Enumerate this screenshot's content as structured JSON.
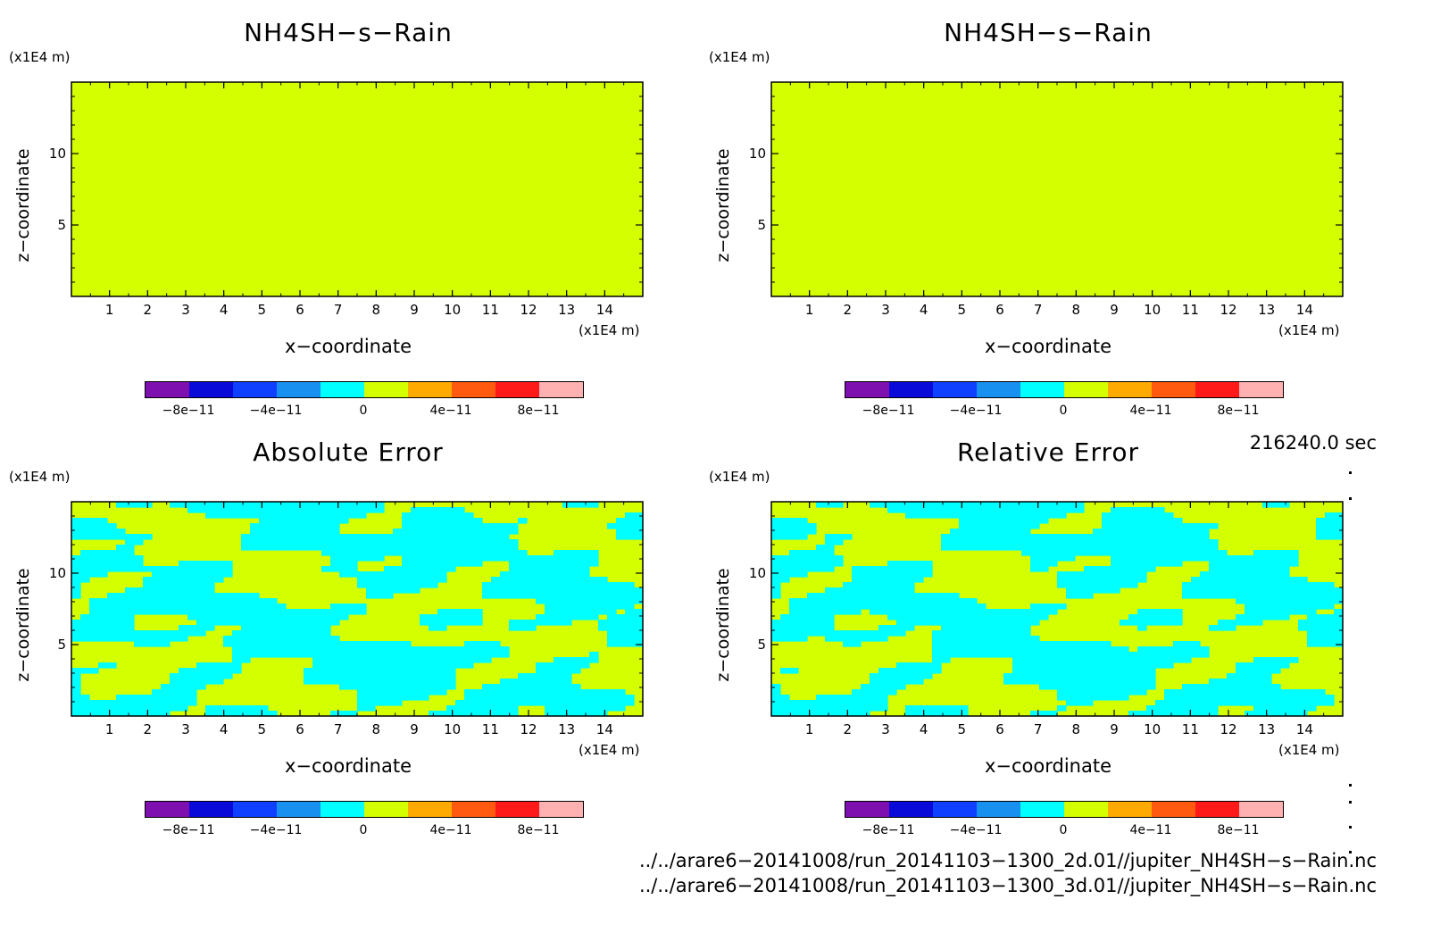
{
  "panels": [
    {
      "title": "NH4SH−s−Rain",
      "field": "uniform"
    },
    {
      "title": "NH4SH−s−Rain",
      "field": "uniform"
    },
    {
      "title": "Absolute Error",
      "field": "noise"
    },
    {
      "title": "Relative Error",
      "field": "noise"
    }
  ],
  "axes": {
    "z_unit": "(x1E4 m)",
    "x_unit": "(x1E4 m)",
    "z_label": "z−coordinate",
    "x_label": "x−coordinate",
    "z_ticks": [
      "5",
      "10"
    ],
    "x_ticks": [
      "1",
      "2",
      "3",
      "4",
      "5",
      "6",
      "7",
      "8",
      "9",
      "10",
      "11",
      "12",
      "13",
      "14"
    ]
  },
  "colorbar": {
    "colors": [
      "#7f10b0",
      "#0a0ad8",
      "#1040ff",
      "#1890f0",
      "#00ffff",
      "#d4ff00",
      "#ffaa00",
      "#ff5a10",
      "#ff1a1a",
      "#ffb0b0"
    ],
    "tick_labels": [
      "−8e−11",
      "−4e−11",
      "0",
      "4e−11",
      "8e−11"
    ]
  },
  "time": "216240.0 sec",
  "files": [
    "../../arare6−20141008/run_20141103−1300_2d.01//jupiter_NH4SH−s−Rain.nc",
    "../../arare6−20141008/run_20141103−1300_3d.01//jupiter_NH4SH−s−Rain.nc"
  ],
  "chart_data": [
    {
      "type": "heatmap",
      "title": "NH4SH−s−Rain",
      "xlabel": "x−coordinate",
      "ylabel": "z−coordinate",
      "xlim": [
        0,
        15
      ],
      "ylim": [
        0,
        15
      ],
      "x_unit": "x1E4 m",
      "z_unit": "x1E4 m",
      "field": "uniform",
      "value": 0,
      "colorbar_ticks": [
        -8e-11,
        -4e-11,
        0,
        4e-11,
        8e-11
      ]
    },
    {
      "type": "heatmap",
      "title": "NH4SH−s−Rain",
      "xlabel": "x−coordinate",
      "ylabel": "z−coordinate",
      "xlim": [
        0,
        15
      ],
      "ylim": [
        0,
        15
      ],
      "x_unit": "x1E4 m",
      "z_unit": "x1E4 m",
      "field": "uniform",
      "value": 0,
      "colorbar_ticks": [
        -8e-11,
        -4e-11,
        0,
        4e-11,
        8e-11
      ]
    },
    {
      "type": "heatmap",
      "title": "Absolute Error",
      "xlabel": "x−coordinate",
      "ylabel": "z−coordinate",
      "xlim": [
        0,
        15
      ],
      "ylim": [
        0,
        15
      ],
      "x_unit": "x1E4 m",
      "z_unit": "x1E4 m",
      "field": "mixed",
      "levels": [
        "-1e-11 to 0 (cyan)",
        "0 to 1e-11 (yellow-green)"
      ],
      "colorbar_ticks": [
        -8e-11,
        -4e-11,
        0,
        4e-11,
        8e-11
      ]
    },
    {
      "type": "heatmap",
      "title": "Relative Error",
      "xlabel": "x−coordinate",
      "ylabel": "z−coordinate",
      "xlim": [
        0,
        15
      ],
      "ylim": [
        0,
        15
      ],
      "x_unit": "x1E4 m",
      "z_unit": "x1E4 m",
      "field": "mixed",
      "levels": [
        "-1e-11 to 0 (cyan)",
        "0 to 1e-11 (yellow-green)"
      ],
      "colorbar_ticks": [
        -8e-11,
        -4e-11,
        0,
        4e-11,
        8e-11
      ]
    }
  ]
}
